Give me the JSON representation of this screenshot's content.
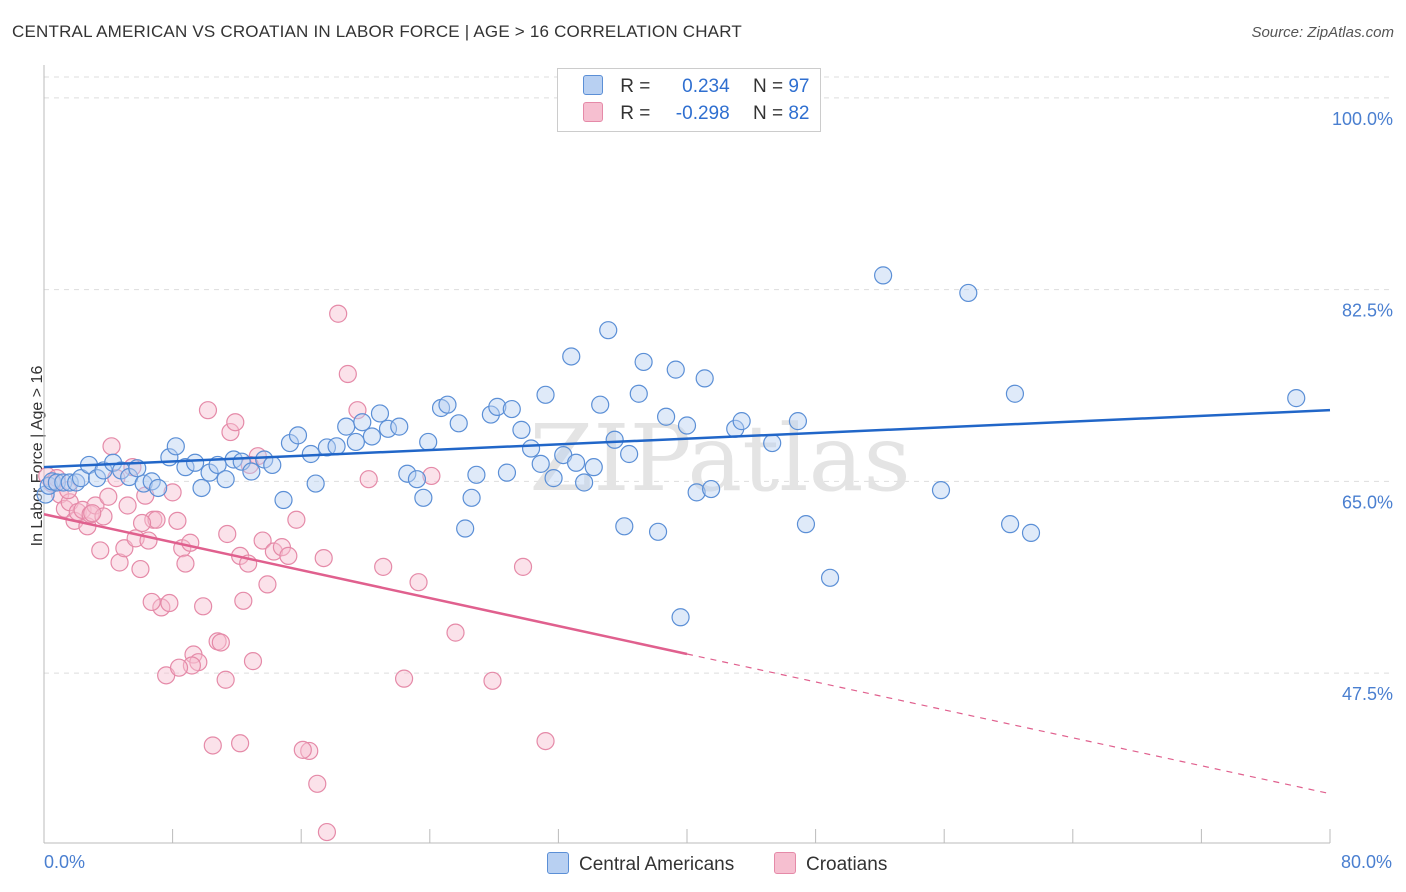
{
  "title": "CENTRAL AMERICAN VS CROATIAN IN LABOR FORCE | AGE > 16 CORRELATION CHART",
  "source": "Source: ZipAtlas.com",
  "watermark": "ZIPatlas",
  "legend": {
    "rows": [
      {
        "r_label": "R =",
        "r_value": "0.234",
        "n_label": "N =",
        "n_value": "97"
      },
      {
        "r_label": "R =",
        "r_value": "-0.298",
        "n_label": "N =",
        "n_value": "82"
      }
    ]
  },
  "bottom_legend": [
    "Central Americans",
    "Croatians"
  ],
  "colors": {
    "blue_fill": "#b8d0f2",
    "blue_stroke": "#5b8fd6",
    "blue_line": "#2166c8",
    "pink_fill": "#f6bfd0",
    "pink_stroke": "#e58aa8",
    "pink_line": "#e0608e",
    "grid": "#dddddd",
    "tick_text": "#4a7fd0"
  },
  "chart_data": {
    "type": "scatter",
    "title": "CENTRAL AMERICAN VS CROATIAN IN LABOR FORCE | AGE > 16 CORRELATION CHART",
    "xlabel": "",
    "ylabel": "In Labor Force | Age > 16",
    "xlim": [
      0,
      80
    ],
    "ylim": [
      32,
      103
    ],
    "x_tick_labels": [
      "0.0%",
      "80.0%"
    ],
    "y_ticks": [
      47.5,
      65.0,
      82.5,
      100.0
    ],
    "y_tick_labels": [
      "47.5%",
      "65.0%",
      "82.5%",
      "100.0%"
    ],
    "series": [
      {
        "name": "Central Americans",
        "r": 0.234,
        "n": 97,
        "trend": {
          "x": [
            0,
            80
          ],
          "y": [
            66.3,
            71.5
          ],
          "dash_from": null
        },
        "points": [
          [
            0.1,
            63.8
          ],
          [
            0.3,
            64.6
          ],
          [
            0.5,
            65.0
          ],
          [
            0.8,
            64.9
          ],
          [
            1.2,
            64.9
          ],
          [
            1.6,
            64.9
          ],
          [
            2.0,
            64.9
          ],
          [
            2.3,
            65.3
          ],
          [
            2.8,
            66.5
          ],
          [
            3.3,
            65.3
          ],
          [
            3.7,
            66.0
          ],
          [
            4.3,
            66.7
          ],
          [
            4.8,
            66.0
          ],
          [
            5.3,
            65.4
          ],
          [
            6.2,
            64.8
          ],
          [
            6.7,
            65.0
          ],
          [
            7.1,
            64.4
          ],
          [
            7.8,
            67.2
          ],
          [
            8.2,
            68.2
          ],
          [
            8.8,
            66.3
          ],
          [
            9.4,
            66.7
          ],
          [
            9.8,
            64.4
          ],
          [
            10.3,
            65.8
          ],
          [
            10.8,
            66.5
          ],
          [
            11.3,
            65.2
          ],
          [
            11.8,
            67.0
          ],
          [
            12.3,
            66.8
          ],
          [
            12.9,
            65.9
          ],
          [
            13.7,
            67.0
          ],
          [
            14.2,
            66.5
          ],
          [
            14.9,
            63.3
          ],
          [
            15.3,
            68.5
          ],
          [
            15.8,
            69.2
          ],
          [
            16.6,
            67.5
          ],
          [
            16.9,
            64.8
          ],
          [
            17.6,
            68.1
          ],
          [
            18.2,
            68.2
          ],
          [
            18.8,
            70.0
          ],
          [
            19.4,
            68.6
          ],
          [
            19.8,
            70.4
          ],
          [
            20.4,
            69.1
          ],
          [
            20.9,
            71.2
          ],
          [
            21.4,
            69.8
          ],
          [
            22.1,
            70.0
          ],
          [
            22.6,
            65.7
          ],
          [
            23.2,
            65.2
          ],
          [
            23.6,
            63.5
          ],
          [
            23.9,
            68.6
          ],
          [
            24.7,
            71.7
          ],
          [
            25.1,
            72.0
          ],
          [
            25.8,
            70.3
          ],
          [
            26.2,
            60.7
          ],
          [
            26.6,
            63.5
          ],
          [
            26.9,
            65.6
          ],
          [
            27.8,
            71.1
          ],
          [
            28.2,
            71.8
          ],
          [
            28.8,
            65.8
          ],
          [
            29.1,
            71.6
          ],
          [
            29.7,
            69.7
          ],
          [
            30.3,
            68.0
          ],
          [
            30.9,
            66.6
          ],
          [
            31.2,
            72.9
          ],
          [
            31.7,
            65.3
          ],
          [
            32.3,
            67.4
          ],
          [
            32.8,
            76.4
          ],
          [
            33.1,
            66.7
          ],
          [
            33.6,
            64.9
          ],
          [
            34.2,
            66.3
          ],
          [
            34.6,
            72.0
          ],
          [
            35.1,
            78.8
          ],
          [
            35.5,
            68.8
          ],
          [
            36.1,
            60.9
          ],
          [
            36.4,
            67.5
          ],
          [
            37.0,
            73.0
          ],
          [
            37.3,
            75.9
          ],
          [
            38.2,
            60.4
          ],
          [
            38.7,
            70.9
          ],
          [
            39.3,
            75.2
          ],
          [
            39.6,
            52.6
          ],
          [
            40.0,
            70.1
          ],
          [
            40.6,
            64.0
          ],
          [
            41.1,
            74.4
          ],
          [
            41.5,
            64.3
          ],
          [
            43.0,
            69.8
          ],
          [
            43.4,
            70.5
          ],
          [
            45.3,
            68.5
          ],
          [
            46.9,
            70.5
          ],
          [
            47.4,
            61.1
          ],
          [
            48.9,
            56.2
          ],
          [
            52.2,
            83.8
          ],
          [
            55.8,
            64.2
          ],
          [
            57.5,
            82.2
          ],
          [
            60.1,
            61.1
          ],
          [
            60.4,
            73.0
          ],
          [
            61.4,
            60.3
          ],
          [
            77.9,
            72.6
          ],
          [
            5.8,
            66.2
          ]
        ]
      },
      {
        "name": "Croatians",
        "r": -0.298,
        "n": 82,
        "trend": {
          "x": [
            0,
            80
          ],
          "y": [
            62.0,
            36.5
          ],
          "dash_from": 40
        },
        "points": [
          [
            0.2,
            65.5
          ],
          [
            0.5,
            64.8
          ],
          [
            0.8,
            65.3
          ],
          [
            1.0,
            63.8
          ],
          [
            1.3,
            62.5
          ],
          [
            1.6,
            63.1
          ],
          [
            1.9,
            61.4
          ],
          [
            2.1,
            62.2
          ],
          [
            2.4,
            62.4
          ],
          [
            2.7,
            60.9
          ],
          [
            2.9,
            62.0
          ],
          [
            3.2,
            62.8
          ],
          [
            3.5,
            58.7
          ],
          [
            3.7,
            61.8
          ],
          [
            4.0,
            63.6
          ],
          [
            4.2,
            68.2
          ],
          [
            4.5,
            65.3
          ],
          [
            4.7,
            57.6
          ],
          [
            5.0,
            58.9
          ],
          [
            5.2,
            62.8
          ],
          [
            5.5,
            66.3
          ],
          [
            5.7,
            59.8
          ],
          [
            6.0,
            57.0
          ],
          [
            6.3,
            63.7
          ],
          [
            6.5,
            59.6
          ],
          [
            6.8,
            61.5
          ],
          [
            7.0,
            61.5
          ],
          [
            7.3,
            53.5
          ],
          [
            7.6,
            47.3
          ],
          [
            7.8,
            53.9
          ],
          [
            8.0,
            64.0
          ],
          [
            8.3,
            61.4
          ],
          [
            8.6,
            58.9
          ],
          [
            8.8,
            57.5
          ],
          [
            9.1,
            59.4
          ],
          [
            9.3,
            49.2
          ],
          [
            9.6,
            48.5
          ],
          [
            9.9,
            53.6
          ],
          [
            10.2,
            71.5
          ],
          [
            10.5,
            40.9
          ],
          [
            10.8,
            50.4
          ],
          [
            11.0,
            50.3
          ],
          [
            11.3,
            46.9
          ],
          [
            11.6,
            69.5
          ],
          [
            11.9,
            70.4
          ],
          [
            12.2,
            58.2
          ],
          [
            12.4,
            54.1
          ],
          [
            12.7,
            57.5
          ],
          [
            13.0,
            48.6
          ],
          [
            13.3,
            67.3
          ],
          [
            13.6,
            59.6
          ],
          [
            13.9,
            55.6
          ],
          [
            14.3,
            58.6
          ],
          [
            14.8,
            59.0
          ],
          [
            15.2,
            58.2
          ],
          [
            15.7,
            61.5
          ],
          [
            16.5,
            40.4
          ],
          [
            17.0,
            37.4
          ],
          [
            17.6,
            33.0
          ],
          [
            18.3,
            80.3
          ],
          [
            18.9,
            74.8
          ],
          [
            19.5,
            71.5
          ],
          [
            20.2,
            65.2
          ],
          [
            21.1,
            57.2
          ],
          [
            22.4,
            47.0
          ],
          [
            23.3,
            55.8
          ],
          [
            24.1,
            65.5
          ],
          [
            25.6,
            51.2
          ],
          [
            27.9,
            46.8
          ],
          [
            29.8,
            57.2
          ],
          [
            31.2,
            41.3
          ],
          [
            3.0,
            62.1
          ],
          [
            6.1,
            61.2
          ],
          [
            1.5,
            64.2
          ],
          [
            11.4,
            60.2
          ],
          [
            12.8,
            66.5
          ],
          [
            9.2,
            48.2
          ],
          [
            8.4,
            48.0
          ],
          [
            12.2,
            41.1
          ],
          [
            6.7,
            54.0
          ],
          [
            17.4,
            58.0
          ],
          [
            16.1,
            40.5
          ]
        ]
      }
    ]
  }
}
